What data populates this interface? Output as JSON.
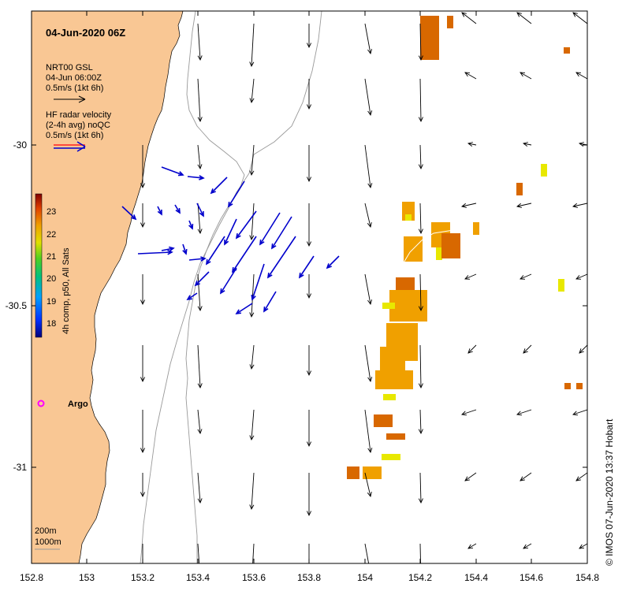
{
  "title": "04-Jun-2020 06Z",
  "model": {
    "name": "NRT00 GSL",
    "time": "04-Jun 06:00Z",
    "scale": "0.5m/s (1kt 6h)"
  },
  "radar": {
    "line1": "HF radar velocity",
    "line2": "(2-4h avg) noQC",
    "scale": "0.5m/s (1kt 6h)"
  },
  "colorbar": {
    "label": "4h comp, p50, All Sats",
    "ticks": [
      "23",
      "22",
      "21",
      "20",
      "19",
      "18"
    ]
  },
  "argo_label": "Argo",
  "depth_legend": {
    "line1": "200m",
    "line2": "1000m"
  },
  "credit": "© IMOS 07-Jun-2020 13:37 Hobart",
  "x_ticks": [
    "152.8",
    "153",
    "153.2",
    "153.4",
    "153.6",
    "153.8",
    "154",
    "154.2",
    "154.4",
    "154.6",
    "154.8"
  ],
  "y_ticks": [
    "-30",
    "-30.5",
    "-31"
  ],
  "colors": {
    "land": "#f9c794",
    "radar_arrow": "#0000cc",
    "model_arrow": "#000000",
    "sst_orange": "#f0a000",
    "sst_dark": "#d86800",
    "argo": "#ff00ff"
  }
}
